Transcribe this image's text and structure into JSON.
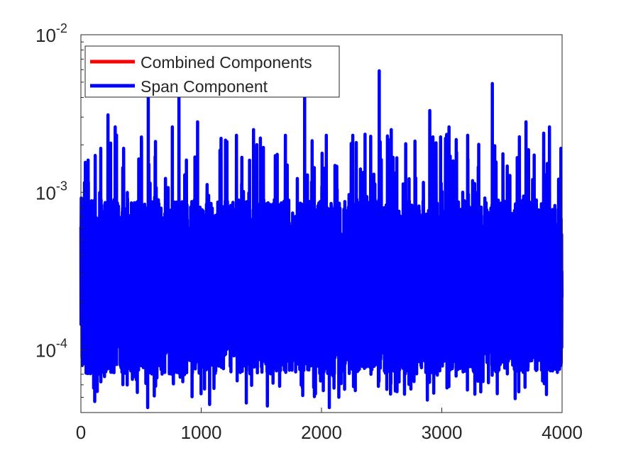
{
  "chart_data": {
    "type": "line",
    "title": "",
    "xlabel": "",
    "ylabel": "",
    "xlim": [
      0,
      4000
    ],
    "ylim": [
      4e-05,
      0.01
    ],
    "yscale": "log",
    "grid": false,
    "legend_placement": "top-left",
    "x_ticks": [
      0,
      1000,
      2000,
      3000,
      4000
    ],
    "x_tick_labels": [
      "0",
      "1000",
      "2000",
      "3000",
      "4000"
    ],
    "y_ticks": [
      0.0001,
      0.001,
      0.01
    ],
    "y_tick_labels": [
      {
        "base": "10",
        "exp": "-4"
      },
      {
        "base": "10",
        "exp": "-3"
      },
      {
        "base": "10",
        "exp": "-2"
      }
    ],
    "series": [
      {
        "name": "Combined Components",
        "color": "#ff0000",
        "values_note": "hidden underneath the Span Component series"
      },
      {
        "name": "Span Component",
        "color": "#0000ff",
        "n_points": 4000,
        "baseline_band": [
          7e-05,
          0.0009
        ],
        "peaks": [
          {
            "x": 3,
            "y": 0.00092
          },
          {
            "x": 60,
            "y": 0.0016
          },
          {
            "x": 165,
            "y": 0.0019
          },
          {
            "x": 225,
            "y": 0.0031
          },
          {
            "x": 285,
            "y": 0.0026
          },
          {
            "x": 355,
            "y": 0.0019
          },
          {
            "x": 560,
            "y": 0.0044
          },
          {
            "x": 620,
            "y": 0.0021
          },
          {
            "x": 760,
            "y": 0.0026
          },
          {
            "x": 815,
            "y": 0.0043
          },
          {
            "x": 970,
            "y": 0.0028
          },
          {
            "x": 1165,
            "y": 0.0022
          },
          {
            "x": 1435,
            "y": 0.0025
          },
          {
            "x": 1700,
            "y": 0.0023
          },
          {
            "x": 1860,
            "y": 0.0043
          },
          {
            "x": 2040,
            "y": 0.0023
          },
          {
            "x": 2260,
            "y": 0.0023
          },
          {
            "x": 2480,
            "y": 0.0059
          },
          {
            "x": 2580,
            "y": 0.0025
          },
          {
            "x": 2900,
            "y": 0.0033
          },
          {
            "x": 3060,
            "y": 0.0026
          },
          {
            "x": 3215,
            "y": 0.0023
          },
          {
            "x": 3420,
            "y": 0.0049
          },
          {
            "x": 3700,
            "y": 0.0028
          },
          {
            "x": 3895,
            "y": 0.0026
          },
          {
            "x": 3990,
            "y": 0.0019
          }
        ],
        "troughs": [
          {
            "x": 115,
            "y": 4.7e-05
          },
          {
            "x": 555,
            "y": 4.3e-05
          },
          {
            "x": 1070,
            "y": 4.5e-05
          },
          {
            "x": 1375,
            "y": 4.6e-05
          },
          {
            "x": 1550,
            "y": 4.4e-05
          },
          {
            "x": 2065,
            "y": 4.3e-05
          },
          {
            "x": 2880,
            "y": 4.8e-05
          },
          {
            "x": 3610,
            "y": 4.9e-05
          },
          {
            "x": 3870,
            "y": 5.2e-05
          }
        ]
      }
    ]
  }
}
